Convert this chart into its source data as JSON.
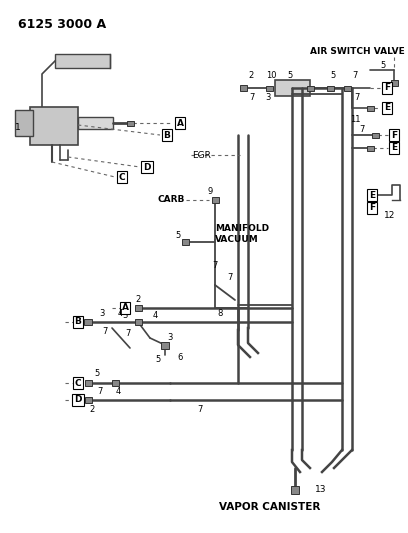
{
  "bg": "#ffffff",
  "lc": "#444444",
  "tc": "#000000",
  "fig_w": 4.08,
  "fig_h": 5.33,
  "dpi": 100,
  "title": "6125 3000 A",
  "vapor_canister": "VAPOR CANISTER",
  "air_switch_valve": "AIR SWITCH VALVE",
  "egr": "EGR",
  "carb": "CARB",
  "manifold_vacuum": "MANIFOLD\nVACUUM"
}
